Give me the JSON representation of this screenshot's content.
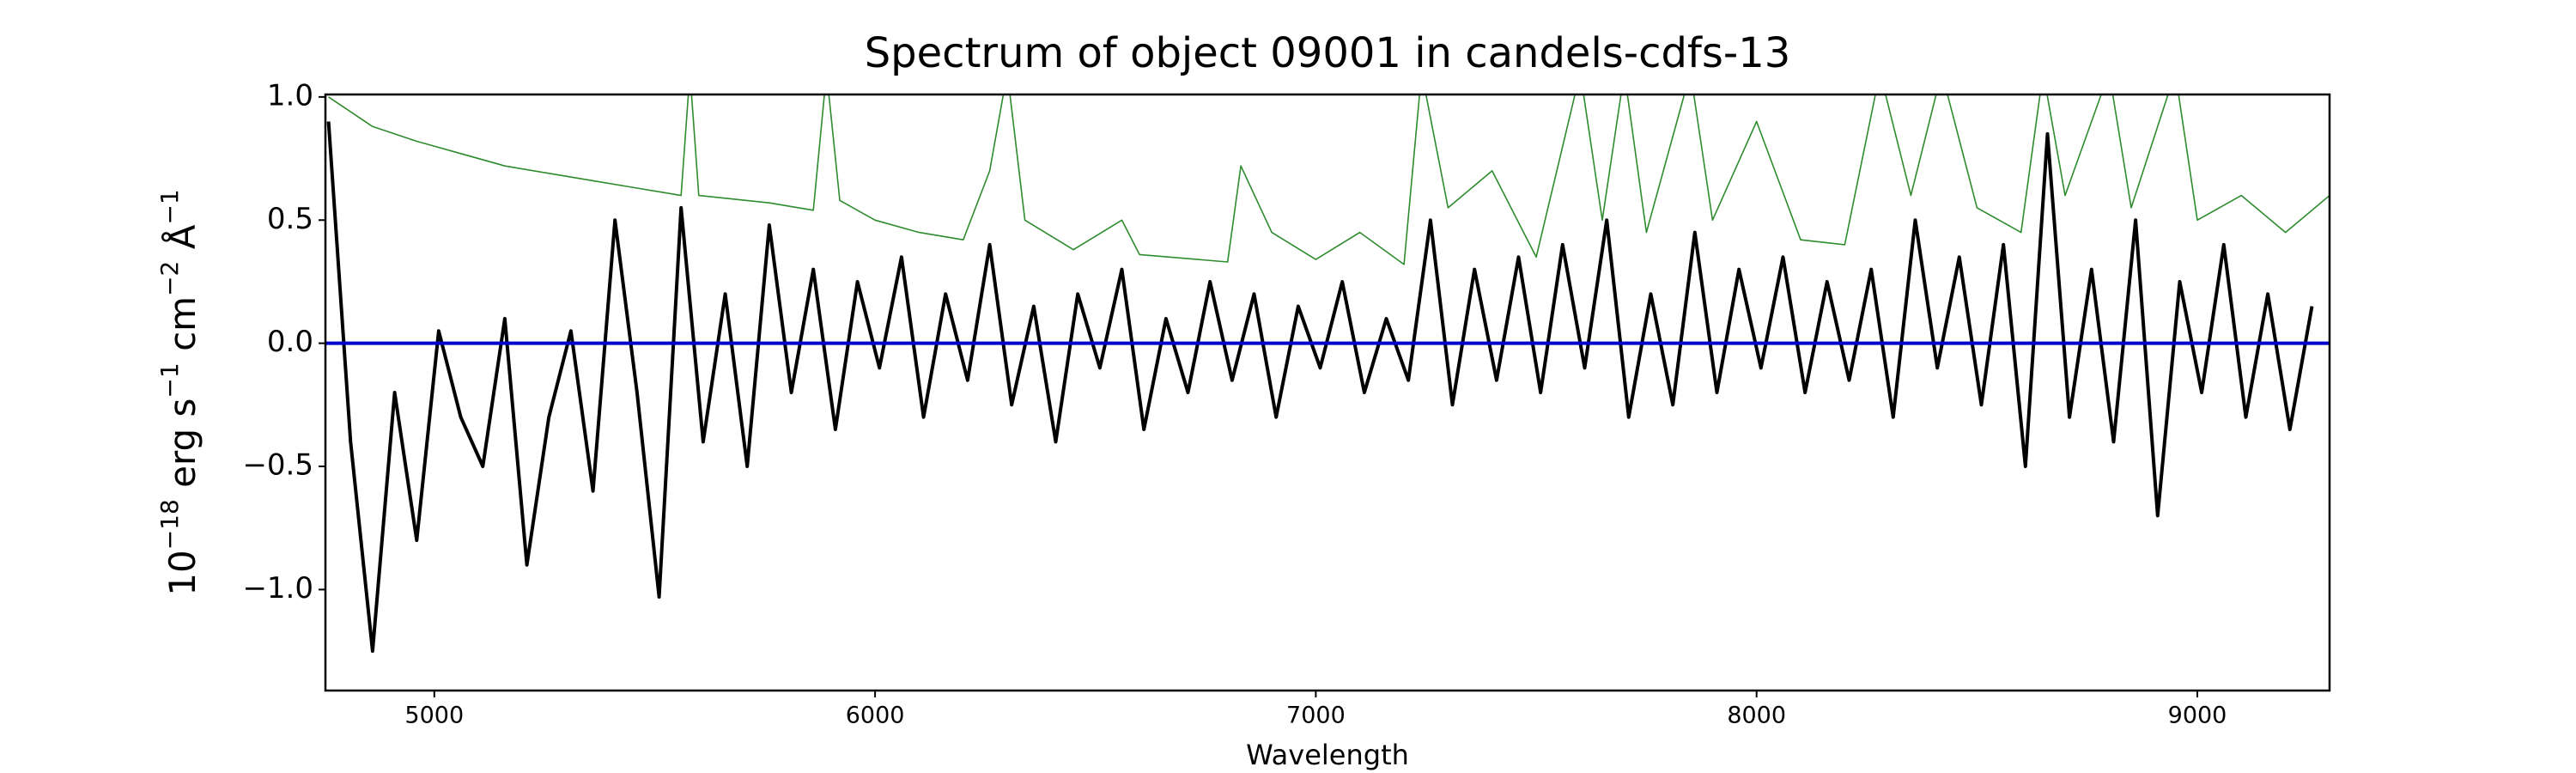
{
  "chart_data": {
    "type": "line",
    "title": "Spectrum of object 09001 in candels-cdfs-13",
    "xlabel": "Wavelength",
    "ylabel_parts": [
      "10",
      "−18",
      " erg s",
      "−1",
      " cm",
      "−2",
      " Å",
      "−1"
    ],
    "xlim": [
      4753,
      9300
    ],
    "ylim": [
      -1.41,
      1.01
    ],
    "xticks": [
      5000,
      6000,
      7000,
      8000,
      9000
    ],
    "yticks": [
      {
        "value": -1.0,
        "label": "−1.0"
      },
      {
        "value": -0.5,
        "label": "−0.5"
      },
      {
        "value": 0.0,
        "label": "0.0"
      },
      {
        "value": 0.5,
        "label": "0.5"
      },
      {
        "value": 1.0,
        "label": "1.0"
      }
    ],
    "series": [
      {
        "color": "#2e8b2e",
        "width": 1.6,
        "x": [
          4760,
          4860,
          4960,
          5060,
          5160,
          5260,
          5360,
          5460,
          5560,
          5580,
          5600,
          5760,
          5860,
          5890,
          5920,
          6000,
          6100,
          6200,
          6260,
          6300,
          6340,
          6450,
          6560,
          6600,
          6800,
          6830,
          6900,
          7000,
          7100,
          7200,
          7240,
          7300,
          7400,
          7500,
          7600,
          7650,
          7700,
          7750,
          7850,
          7900,
          8000,
          8100,
          8200,
          8280,
          8350,
          8420,
          8500,
          8600,
          8650,
          8700,
          8800,
          8850,
          8950,
          9000,
          9100,
          9200,
          9300
        ],
        "values": [
          1.0,
          0.88,
          0.82,
          0.77,
          0.72,
          0.69,
          0.66,
          0.63,
          0.6,
          1.1,
          0.6,
          0.57,
          0.54,
          1.1,
          0.58,
          0.5,
          0.45,
          0.42,
          0.7,
          1.1,
          0.5,
          0.38,
          0.5,
          0.36,
          0.33,
          0.72,
          0.45,
          0.34,
          0.45,
          0.32,
          1.1,
          0.55,
          0.7,
          0.35,
          1.1,
          0.5,
          1.1,
          0.45,
          1.1,
          0.5,
          0.9,
          0.42,
          0.4,
          1.1,
          0.6,
          1.1,
          0.55,
          0.45,
          1.1,
          0.6,
          1.1,
          0.55,
          1.1,
          0.5,
          0.6,
          0.45,
          0.6
        ]
      },
      {
        "color": "#000000",
        "width": 4,
        "x": [
          4760,
          4810,
          4860,
          4910,
          4960,
          5010,
          5060,
          5110,
          5160,
          5210,
          5260,
          5310,
          5360,
          5410,
          5460,
          5510,
          5560,
          5610,
          5660,
          5710,
          5760,
          5810,
          5860,
          5910,
          5960,
          6010,
          6060,
          6110,
          6160,
          6210,
          6260,
          6310,
          6360,
          6410,
          6460,
          6510,
          6560,
          6610,
          6660,
          6710,
          6760,
          6810,
          6860,
          6910,
          6960,
          7010,
          7060,
          7110,
          7160,
          7210,
          7260,
          7310,
          7360,
          7410,
          7460,
          7510,
          7560,
          7610,
          7660,
          7710,
          7760,
          7810,
          7860,
          7910,
          7960,
          8010,
          8060,
          8110,
          8160,
          8210,
          8260,
          8310,
          8360,
          8410,
          8460,
          8510,
          8560,
          8610,
          8660,
          8710,
          8760,
          8810,
          8860,
          8910,
          8960,
          9010,
          9060,
          9110,
          9160,
          9210,
          9260
        ],
        "values": [
          0.9,
          -0.4,
          -1.25,
          -0.2,
          -0.8,
          0.05,
          -0.3,
          -0.5,
          0.1,
          -0.9,
          -0.3,
          0.05,
          -0.6,
          0.5,
          -0.2,
          -1.03,
          0.55,
          -0.4,
          0.2,
          -0.5,
          0.48,
          -0.2,
          0.3,
          -0.35,
          0.25,
          -0.1,
          0.35,
          -0.3,
          0.2,
          -0.15,
          0.4,
          -0.25,
          0.15,
          -0.4,
          0.2,
          -0.1,
          0.3,
          -0.35,
          0.1,
          -0.2,
          0.25,
          -0.15,
          0.2,
          -0.3,
          0.15,
          -0.1,
          0.25,
          -0.2,
          0.1,
          -0.15,
          0.5,
          -0.25,
          0.3,
          -0.15,
          0.35,
          -0.2,
          0.4,
          -0.1,
          0.5,
          -0.3,
          0.2,
          -0.25,
          0.45,
          -0.2,
          0.3,
          -0.1,
          0.35,
          -0.2,
          0.25,
          -0.15,
          0.3,
          -0.3,
          0.5,
          -0.1,
          0.35,
          -0.25,
          0.4,
          -0.5,
          0.85,
          -0.3,
          0.3,
          -0.4,
          0.5,
          -0.7,
          0.25,
          -0.2,
          0.4,
          -0.3,
          0.2,
          -0.35,
          0.15
        ]
      },
      {
        "color": "#0000cc",
        "width": 4,
        "x": [
          4753,
          9300
        ],
        "values": [
          0,
          0
        ]
      }
    ]
  }
}
